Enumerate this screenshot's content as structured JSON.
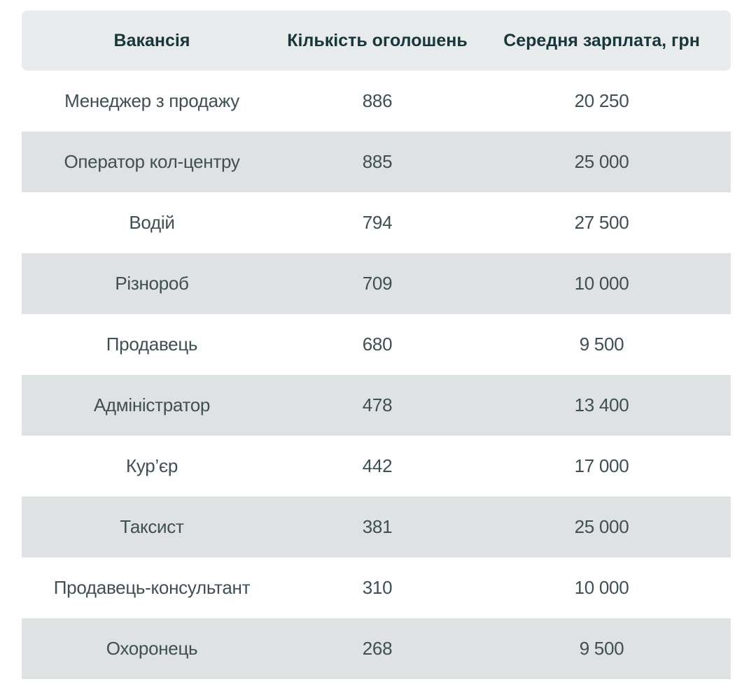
{
  "table": {
    "headers": [
      "Вакансія",
      "Кількість оголошень",
      "Середня зарплата, грн"
    ],
    "rows": [
      [
        "Менеджер з продажу",
        "886",
        "20 250"
      ],
      [
        "Оператор кол-центру",
        "885",
        "25 000"
      ],
      [
        "Водій",
        "794",
        "27 500"
      ],
      [
        "Різнороб",
        "709",
        "10 000"
      ],
      [
        "Продавець",
        "680",
        "9 500"
      ],
      [
        "Адміністратор",
        "478",
        "13 400"
      ],
      [
        "Кур’єр",
        "442",
        "17 000"
      ],
      [
        "Таксист",
        "381",
        "25 000"
      ],
      [
        "Продавець-консультант",
        "310",
        "10 000"
      ],
      [
        "Охоронець",
        "268",
        "9 500"
      ]
    ]
  },
  "colors": {
    "header_bg": "#e8ebec",
    "stripe_bg": "#dfe2e3",
    "header_text": "#17373b",
    "body_text": "#3f4f52"
  }
}
